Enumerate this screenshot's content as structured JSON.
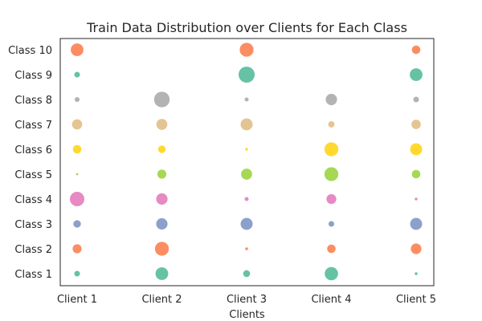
{
  "chart_data": {
    "type": "scatter",
    "title": "Train Data Distribution over Clients for Each Class",
    "xlabel": "Clients",
    "ylabel": "",
    "x_categories": [
      "Client 1",
      "Client 2",
      "Client 3",
      "Client 4",
      "Client 5"
    ],
    "y_categories": [
      "Class 1",
      "Class 2",
      "Class 3",
      "Class 4",
      "Class 5",
      "Class 6",
      "Class 7",
      "Class 8",
      "Class 9",
      "Class 10"
    ],
    "class_colors": [
      "#66c2a5",
      "#fc8d62",
      "#8da0cb",
      "#e78ac3",
      "#a6d854",
      "#ffd92f",
      "#e5c494",
      "#b3b3b3",
      "#66c2a5",
      "#fc8d62"
    ],
    "values": [
      [
        0.2,
        1.0,
        0.3,
        1.1,
        0.05
      ],
      [
        0.5,
        1.2,
        0.05,
        0.45,
        0.7
      ],
      [
        0.35,
        0.8,
        0.9,
        0.2,
        0.9
      ],
      [
        1.3,
        0.8,
        0.1,
        0.6,
        0.05
      ],
      [
        0.03,
        0.5,
        0.75,
        1.2,
        0.45
      ],
      [
        0.45,
        0.35,
        0.05,
        1.2,
        0.9
      ],
      [
        0.65,
        0.75,
        0.9,
        0.25,
        0.55
      ],
      [
        0.15,
        1.5,
        0.1,
        0.8,
        0.2
      ],
      [
        0.2,
        0.0,
        1.6,
        0.0,
        1.0
      ],
      [
        1.0,
        0.0,
        1.2,
        0.0,
        0.45
      ]
    ],
    "grid": false,
    "legend": "none"
  }
}
